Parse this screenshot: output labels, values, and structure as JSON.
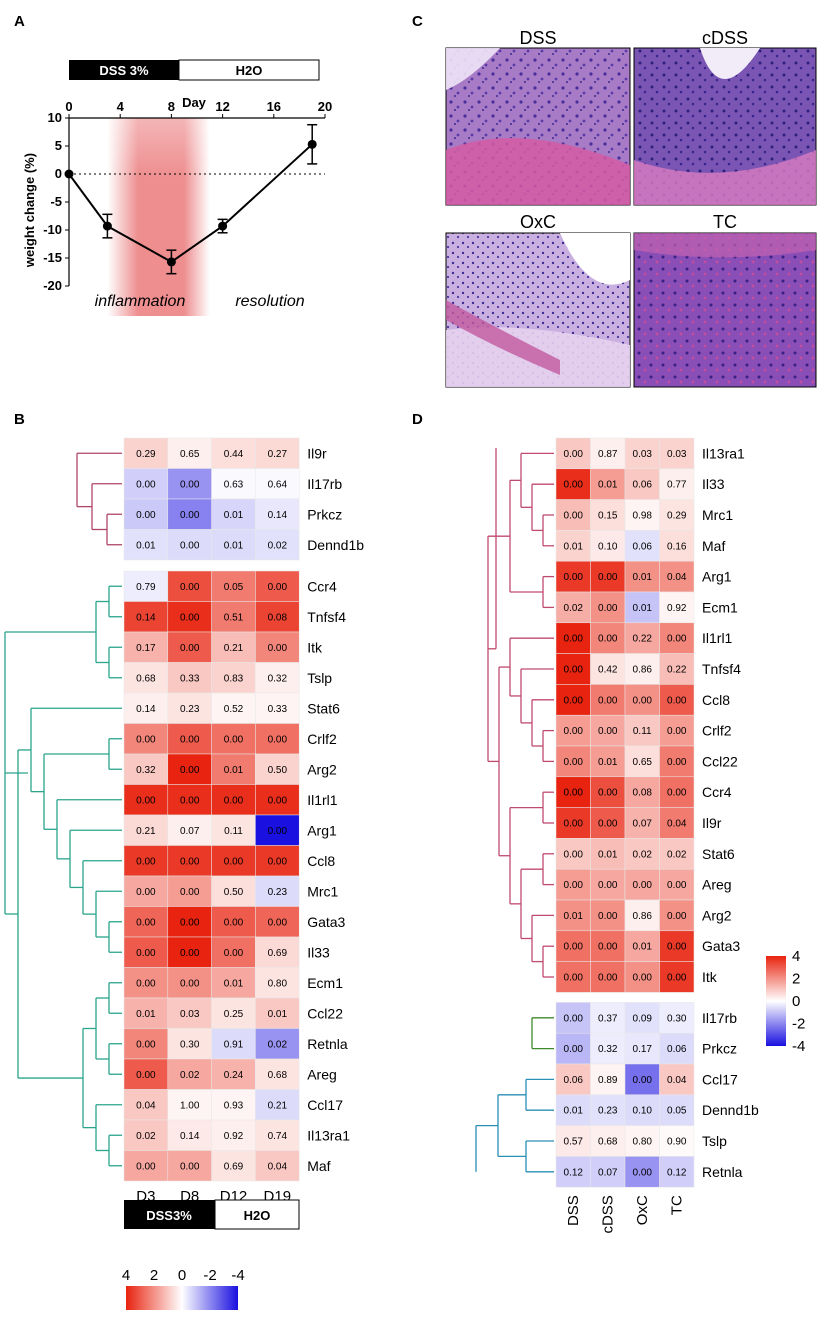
{
  "colors": {
    "high": "#e8230f",
    "mid": "#ffffff",
    "low": "#1a10e0",
    "inflam_band": "#e8686a",
    "dendro_b_top": "#b0456a",
    "dendro_b_main": "#2aa58c",
    "dendro_d_top": "#c04a6e",
    "dendro_d_green": "#3d8a2e",
    "dendro_d_blue": "#2a8fb5"
  },
  "icons": {
    "error_bar": "error-bar-icon",
    "data_point": "filled-circle-icon"
  },
  "panels": {
    "a": "A",
    "b": "B",
    "c": "C",
    "d": "D"
  },
  "chart_data": [
    {
      "id": "A",
      "type": "line",
      "title": "Day",
      "xlabel": "Day",
      "ylabel": "weight change (%)",
      "xlim": [
        0,
        20
      ],
      "ylim": [
        -20,
        10
      ],
      "xticks": [
        "0",
        "4",
        "8",
        "12",
        "16",
        "20"
      ],
      "yticks": [
        "10",
        "5",
        "0",
        "-5",
        "-10",
        "-15",
        "-20"
      ],
      "series": [
        {
          "name": "weight change",
          "x": [
            0,
            3,
            8,
            12,
            19
          ],
          "y": [
            0,
            -9.3,
            -15.7,
            -9.3,
            5.3
          ],
          "err": [
            0,
            2.1,
            2.1,
            1.2,
            3.5
          ]
        }
      ],
      "reference_line": 0,
      "treatment_bar": {
        "left": "DSS 3%",
        "right": "H2O"
      },
      "phases": {
        "inflammation": "inflammation",
        "resolution": "resolution"
      },
      "shaded_range": [
        3,
        11
      ]
    },
    {
      "id": "B",
      "type": "heatmap",
      "columns": [
        "D3",
        "D8",
        "D12",
        "D19"
      ],
      "groups": [
        {
          "rows": [
            "Il9r",
            "Il17rb",
            "Prkcz",
            "Dennd1b"
          ],
          "pvalues": [
            [
              "0.29",
              "0.65",
              "0.44",
              "0.27"
            ],
            [
              "0.00",
              "0.00",
              "0.63",
              "0.64"
            ],
            [
              "0.00",
              "0.00",
              "0.01",
              "0.14"
            ],
            [
              "0.01",
              "0.00",
              "0.01",
              "0.02"
            ]
          ],
          "z": [
            [
              0.8,
              0.3,
              0.6,
              0.7
            ],
            [
              -0.8,
              -1.8,
              -0.1,
              -0.1
            ],
            [
              -0.9,
              -2.1,
              -0.7,
              -0.4
            ],
            [
              -0.5,
              -0.6,
              -0.6,
              -0.5
            ]
          ]
        },
        {
          "rows": [
            "Ccr4",
            "Tnfsf4",
            "Itk",
            "Tslp",
            "Stat6",
            "Crlf2",
            "Arg2",
            "Il1rl1",
            "Arg1",
            "Ccl8",
            "Mrc1",
            "Gata3",
            "Il33",
            "Ecm1",
            "Ccl22",
            "Retnla",
            "Areg",
            "Ccl17",
            "Il13ra1",
            "Maf"
          ],
          "pvalues": [
            [
              "0.79",
              "0.00",
              "0.05",
              "0.00"
            ],
            [
              "0.14",
              "0.00",
              "0.51",
              "0.08"
            ],
            [
              "0.17",
              "0.00",
              "0.21",
              "0.00"
            ],
            [
              "0.68",
              "0.33",
              "0.83",
              "0.32"
            ],
            [
              "0.14",
              "0.23",
              "0.52",
              "0.33"
            ],
            [
              "0.00",
              "0.00",
              "0.00",
              "0.00"
            ],
            [
              "0.32",
              "0.00",
              "0.01",
              "0.50"
            ],
            [
              "0.00",
              "0.00",
              "0.00",
              "0.00"
            ],
            [
              "0.21",
              "0.07",
              "0.11",
              "0.00"
            ],
            [
              "0.00",
              "0.00",
              "0.00",
              "0.00"
            ],
            [
              "0.00",
              "0.00",
              "0.50",
              "0.23"
            ],
            [
              "0.00",
              "0.00",
              "0.00",
              "0.00"
            ],
            [
              "0.00",
              "0.00",
              "0.00",
              "0.69"
            ],
            [
              "0.00",
              "0.00",
              "0.01",
              "0.80"
            ],
            [
              "0.01",
              "0.03",
              "0.25",
              "0.01"
            ],
            [
              "0.00",
              "0.30",
              "0.91",
              "0.02"
            ],
            [
              "0.00",
              "0.02",
              "0.24",
              "0.68"
            ],
            [
              "0.04",
              "1.00",
              "0.93",
              "0.21"
            ],
            [
              "0.02",
              "0.14",
              "0.92",
              "0.74"
            ],
            [
              "0.00",
              "0.00",
              "0.69",
              "0.04"
            ]
          ],
          "z": [
            [
              -0.3,
              3.2,
              2.4,
              3.0
            ],
            [
              3.4,
              3.8,
              2.4,
              3.4
            ],
            [
              1.4,
              3.0,
              1.2,
              2.2
            ],
            [
              0.5,
              1.0,
              0.8,
              0.3
            ],
            [
              0.3,
              0.5,
              0.2,
              0.2
            ],
            [
              2.2,
              3.0,
              2.6,
              2.6
            ],
            [
              1.0,
              4.0,
              2.4,
              0.8
            ],
            [
              3.8,
              3.8,
              3.8,
              3.8
            ],
            [
              0.7,
              0.3,
              0.5,
              -4.0
            ],
            [
              3.6,
              3.6,
              3.6,
              3.6
            ],
            [
              1.6,
              1.8,
              0.6,
              -0.6
            ],
            [
              2.8,
              4.0,
              3.0,
              2.8
            ],
            [
              3.0,
              4.0,
              2.6,
              0.7
            ],
            [
              2.0,
              2.0,
              1.6,
              0.5
            ],
            [
              1.4,
              1.0,
              0.5,
              1.0
            ],
            [
              2.2,
              0.5,
              -0.6,
              -1.8
            ],
            [
              3.0,
              1.6,
              1.4,
              0.5
            ],
            [
              1.0,
              0.2,
              0.2,
              -0.6
            ],
            [
              1.0,
              0.4,
              0.3,
              0.5
            ],
            [
              1.6,
              1.6,
              0.5,
              1.0
            ]
          ]
        }
      ],
      "treatment_bar": {
        "left": "DSS3%",
        "right": "H2O"
      },
      "legend": {
        "ticks": [
          "4",
          "2",
          "0",
          "-2",
          "-4"
        ],
        "range": [
          4,
          -4
        ]
      }
    },
    {
      "id": "D",
      "type": "heatmap",
      "columns": [
        "DSS",
        "cDSS",
        "OxC",
        "TC"
      ],
      "groups": [
        {
          "rows": [
            "Il13ra1",
            "Il33",
            "Mrc1",
            "Maf",
            "Arg1",
            "Ecm1",
            "Il1rl1",
            "Tnfsf4",
            "Ccl8",
            "Crlf2",
            "Ccl22",
            "Ccr4",
            "Il9r",
            "Stat6",
            "Areg",
            "Arg2",
            "Gata3",
            "Itk"
          ],
          "pvalues": [
            [
              "0.00",
              "0.87",
              "0.03",
              "0.03"
            ],
            [
              "0.00",
              "0.01",
              "0.06",
              "0.77"
            ],
            [
              "0.00",
              "0.15",
              "0.98",
              "0.29"
            ],
            [
              "0.01",
              "0.10",
              "0.06",
              "0.16"
            ],
            [
              "0.00",
              "0.00",
              "0.01",
              "0.04"
            ],
            [
              "0.02",
              "0.00",
              "0.01",
              "0.92"
            ],
            [
              "0.00",
              "0.00",
              "0.22",
              "0.00"
            ],
            [
              "0.00",
              "0.42",
              "0.86",
              "0.22"
            ],
            [
              "0.00",
              "0.00",
              "0.00",
              "0.00"
            ],
            [
              "0.00",
              "0.00",
              "0.11",
              "0.00"
            ],
            [
              "0.00",
              "0.01",
              "0.65",
              "0.00"
            ],
            [
              "0.00",
              "0.00",
              "0.08",
              "0.00"
            ],
            [
              "0.00",
              "0.00",
              "0.07",
              "0.04"
            ],
            [
              "0.00",
              "0.01",
              "0.02",
              "0.02"
            ],
            [
              "0.00",
              "0.00",
              "0.00",
              "0.00"
            ],
            [
              "0.01",
              "0.00",
              "0.86",
              "0.00"
            ],
            [
              "0.00",
              "0.00",
              "0.01",
              "0.00"
            ],
            [
              "0.00",
              "0.00",
              "0.00",
              "0.00"
            ]
          ],
          "z": [
            [
              1.0,
              0.3,
              0.8,
              0.8
            ],
            [
              3.8,
              1.8,
              1.0,
              0.3
            ],
            [
              1.2,
              0.6,
              0.2,
              0.5
            ],
            [
              0.8,
              0.4,
              -0.5,
              0.6
            ],
            [
              3.6,
              3.6,
              2.0,
              2.0
            ],
            [
              1.5,
              2.0,
              -1.0,
              0.2
            ],
            [
              4.0,
              2.2,
              1.6,
              2.2
            ],
            [
              4.0,
              0.5,
              0.3,
              1.2
            ],
            [
              4.0,
              2.4,
              2.0,
              3.0
            ],
            [
              1.8,
              1.6,
              1.0,
              1.8
            ],
            [
              2.2,
              1.8,
              0.6,
              2.4
            ],
            [
              4.0,
              3.2,
              1.6,
              2.6
            ],
            [
              3.6,
              3.0,
              1.4,
              2.4
            ],
            [
              1.0,
              1.2,
              1.0,
              1.0
            ],
            [
              1.8,
              1.6,
              1.6,
              1.6
            ],
            [
              2.0,
              2.0,
              0.3,
              2.0
            ],
            [
              2.6,
              2.6,
              1.6,
              3.6
            ],
            [
              2.6,
              2.6,
              2.0,
              3.6
            ]
          ]
        },
        {
          "rows": [
            "Il17rb",
            "Prkcz",
            "Ccl17",
            "Dennd1b",
            "Tslp",
            "Retnla"
          ],
          "pvalues": [
            [
              "0.00",
              "0.37",
              "0.09",
              "0.30"
            ],
            [
              "0.00",
              "0.32",
              "0.17",
              "0.06"
            ],
            [
              "0.06",
              "0.89",
              "0.00",
              "0.04"
            ],
            [
              "0.01",
              "0.23",
              "0.10",
              "0.05"
            ],
            [
              "0.57",
              "0.68",
              "0.80",
              "0.90"
            ],
            [
              "0.12",
              "0.07",
              "0.00",
              "0.12"
            ]
          ],
          "z": [
            [
              -1.0,
              -0.3,
              -0.5,
              -0.3
            ],
            [
              -1.2,
              -0.3,
              -0.4,
              -0.6
            ],
            [
              1.0,
              0.2,
              -2.4,
              1.0
            ],
            [
              -0.6,
              -0.5,
              -0.6,
              -0.6
            ],
            [
              0.4,
              0.3,
              0.2,
              0.1
            ],
            [
              -0.8,
              -0.8,
              -1.8,
              -0.8
            ]
          ]
        }
      ],
      "legend": {
        "ticks": [
          "4",
          "2",
          "0",
          "-2",
          "-4"
        ],
        "range": [
          4,
          -4
        ]
      }
    }
  ],
  "histology": {
    "panels": [
      {
        "label": "DSS"
      },
      {
        "label": "cDSS"
      },
      {
        "label": "OxC"
      },
      {
        "label": "TC"
      }
    ]
  }
}
